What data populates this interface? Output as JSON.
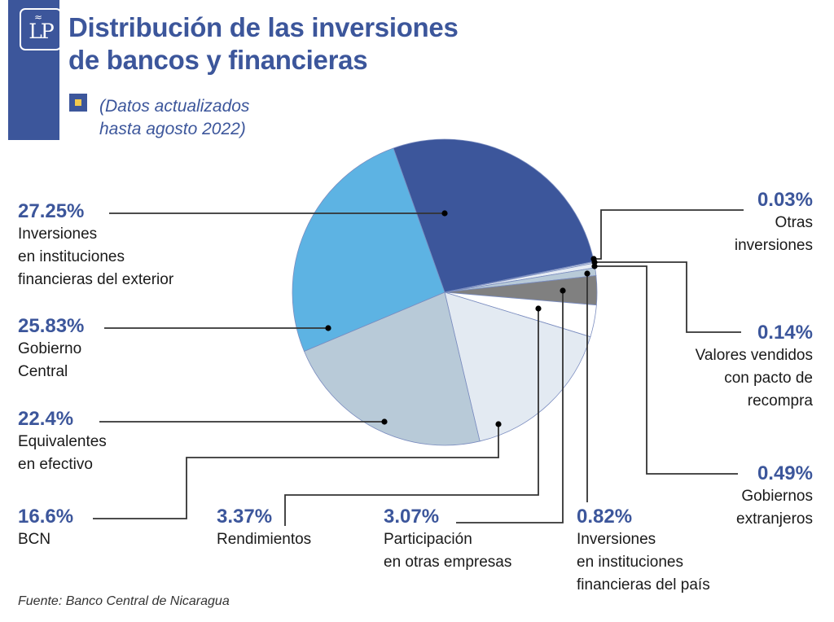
{
  "header": {
    "logo_text": "LP",
    "title_lines": [
      "Distribución de las inversiones",
      "de bancos y financieras"
    ],
    "subtitle_lines": [
      "(Datos actualizados",
      "hasta agosto 2022)"
    ]
  },
  "colors": {
    "brand": "#3C569B",
    "accent_yellow": "#F2C94C",
    "leader": "#333333",
    "edge": "#7A8CBF"
  },
  "chart_data": {
    "type": "pie",
    "title": "Distribución de las inversiones de bancos y financieras",
    "subtitle": "(Datos actualizados hasta agosto 2022)",
    "unit": "%",
    "start_angle_deg_clockwise_from_top": 340.3,
    "slices": [
      {
        "label": "Inversiones en instituciones financieras del exterior",
        "value": 27.25,
        "display": "27.25%",
        "color": "#3C569B",
        "desc_lines": [
          "Inversiones",
          "en instituciones",
          "financieras del exterior"
        ]
      },
      {
        "label": "Otras inversiones",
        "value": 0.03,
        "display": "0.03%",
        "color": "#E9EEF5",
        "desc_lines": [
          "Otras",
          "inversiones"
        ]
      },
      {
        "label": "Valores vendidos con pacto de recompra",
        "value": 0.14,
        "display": "0.14%",
        "color": "#D6E0EC",
        "desc_lines": [
          "Valores vendidos",
          "con pacto de",
          "recompra"
        ]
      },
      {
        "label": "Gobiernos extranjeros",
        "value": 0.49,
        "display": "0.49%",
        "color": "#E6ECF4",
        "desc_lines": [
          "Gobiernos",
          "extranjeros"
        ]
      },
      {
        "label": "Inversiones en instituciones financieras del país",
        "value": 0.82,
        "display": "0.82%",
        "color": "#B8CAD8",
        "desc_lines": [
          "Inversiones",
          "en instituciones",
          "financieras del país"
        ]
      },
      {
        "label": "Participación en otras empresas",
        "value": 3.07,
        "display": "3.07%",
        "color": "#808080",
        "desc_lines": [
          "Participación",
          "en otras empresas"
        ]
      },
      {
        "label": "Rendimientos",
        "value": 3.37,
        "display": "3.37%",
        "color": "#FFFFFF",
        "desc_lines": [
          "Rendimientos"
        ]
      },
      {
        "label": "BCN",
        "value": 16.6,
        "display": "16.6%",
        "color": "#E3EAF2",
        "desc_lines": [
          "BCN"
        ]
      },
      {
        "label": "Equivalentes en efectivo",
        "value": 22.4,
        "display": "22.4%",
        "color": "#B8CAD8",
        "desc_lines": [
          "Equivalentes",
          "en efectivo"
        ]
      },
      {
        "label": "Gobierno Central",
        "value": 25.83,
        "display": "25.83%",
        "color": "#5DB3E3",
        "desc_lines": [
          "Gobierno",
          "Central"
        ]
      }
    ]
  },
  "footer": {
    "source": "Fuente: Banco Central de Nicaragua"
  }
}
